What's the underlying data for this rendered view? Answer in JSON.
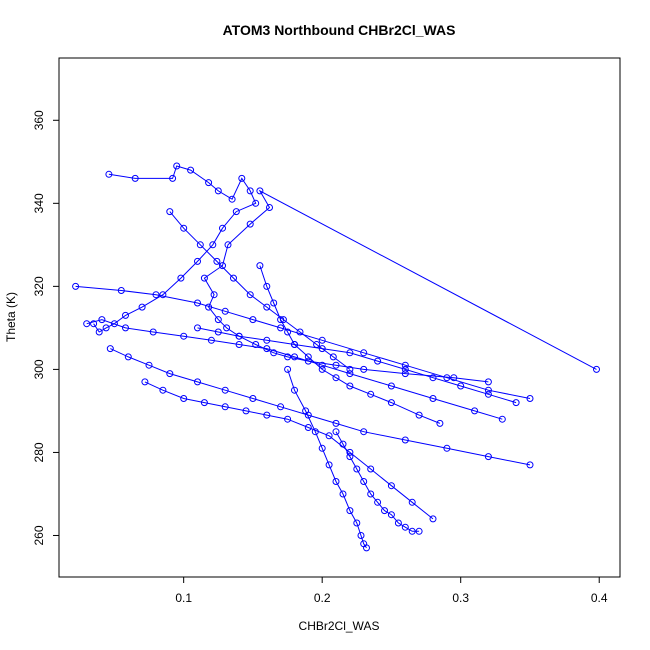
{
  "chart_data": {
    "type": "scatter",
    "title": "ATOM3 Northbound CHBr2Cl_WAS",
    "xlabel": "CHBr2Cl_WAS",
    "ylabel": "Theta (K)",
    "xlim": [
      0.01,
      0.415
    ],
    "ylim": [
      250,
      375
    ],
    "xticks": [
      0.1,
      0.2,
      0.3,
      0.4
    ],
    "yticks": [
      260,
      280,
      300,
      320,
      340,
      360
    ],
    "xtick_labels": [
      "0.1",
      "0.2",
      "0.3",
      "0.4"
    ],
    "ytick_labels": [
      "260",
      "280",
      "300",
      "320",
      "340",
      "360"
    ],
    "grid": false,
    "legend": "none",
    "style": {
      "color": "#0000ff",
      "marker": "open-circle",
      "connect": "lines"
    },
    "series": [
      {
        "x": [
          0.046,
          0.065,
          0.092,
          0.095,
          0.105,
          0.118,
          0.125,
          0.135,
          0.142,
          0.148,
          0.152,
          0.138,
          0.128,
          0.121,
          0.11,
          0.098,
          0.085,
          0.07,
          0.058,
          0.05,
          0.044,
          0.039,
          0.035
        ],
        "y": [
          347,
          346,
          346,
          349,
          348,
          345,
          343,
          341,
          346,
          343,
          340,
          338,
          334,
          330,
          326,
          322,
          318,
          315,
          313,
          311,
          310,
          309,
          311
        ]
      },
      {
        "x": [
          0.398,
          0.155,
          0.162,
          0.148,
          0.132,
          0.128,
          0.115,
          0.122,
          0.118,
          0.125,
          0.131,
          0.14,
          0.152,
          0.165,
          0.175,
          0.19,
          0.21,
          0.23,
          0.26,
          0.295,
          0.32
        ],
        "y": [
          300,
          343,
          339,
          335,
          330,
          325,
          322,
          318,
          315,
          312,
          310,
          308,
          306,
          304,
          303,
          302,
          301,
          300,
          299,
          298,
          297
        ]
      },
      {
        "x": [
          0.022,
          0.055,
          0.08,
          0.11,
          0.13,
          0.15,
          0.17,
          0.2,
          0.23,
          0.26,
          0.29,
          0.32,
          0.35
        ],
        "y": [
          320,
          319,
          318,
          316,
          314,
          312,
          310,
          307,
          304,
          301,
          298,
          295,
          293
        ]
      },
      {
        "x": [
          0.03,
          0.041,
          0.058,
          0.078,
          0.1,
          0.12,
          0.14,
          0.16,
          0.18,
          0.2,
          0.22,
          0.25,
          0.28,
          0.31,
          0.33
        ],
        "y": [
          311,
          312,
          310,
          309,
          308,
          307,
          306,
          305,
          303,
          301,
          299,
          296,
          293,
          290,
          288
        ]
      },
      {
        "x": [
          0.047,
          0.06,
          0.075,
          0.09,
          0.11,
          0.13,
          0.15,
          0.17,
          0.19,
          0.21,
          0.23,
          0.26,
          0.29,
          0.32,
          0.35
        ],
        "y": [
          305,
          303,
          301,
          299,
          297,
          295,
          293,
          291,
          289,
          287,
          285,
          283,
          281,
          279,
          277
        ]
      },
      {
        "x": [
          0.072,
          0.085,
          0.1,
          0.115,
          0.13,
          0.145,
          0.16,
          0.175,
          0.19,
          0.205,
          0.22,
          0.235,
          0.25,
          0.265,
          0.28
        ],
        "y": [
          297,
          295,
          293,
          292,
          291,
          290,
          289,
          288,
          286,
          284,
          280,
          276,
          272,
          268,
          264
        ]
      },
      {
        "x": [
          0.175,
          0.18,
          0.188,
          0.195,
          0.2,
          0.205,
          0.21,
          0.215,
          0.22,
          0.225,
          0.228,
          0.23,
          0.232
        ],
        "y": [
          300,
          295,
          290,
          285,
          281,
          277,
          273,
          270,
          266,
          263,
          260,
          258,
          257
        ]
      },
      {
        "x": [
          0.11,
          0.125,
          0.14,
          0.16,
          0.18,
          0.2,
          0.22,
          0.24,
          0.26,
          0.28,
          0.3,
          0.32,
          0.34
        ],
        "y": [
          310,
          309,
          308,
          307,
          306,
          305,
          304,
          302,
          300,
          298,
          296,
          294,
          292
        ]
      },
      {
        "x": [
          0.155,
          0.16,
          0.165,
          0.17,
          0.175,
          0.18,
          0.19,
          0.2,
          0.21,
          0.22,
          0.235,
          0.25,
          0.27,
          0.285
        ],
        "y": [
          325,
          320,
          316,
          312,
          309,
          306,
          303,
          300,
          298,
          296,
          294,
          292,
          289,
          287
        ]
      },
      {
        "x": [
          0.09,
          0.1,
          0.112,
          0.124,
          0.136,
          0.148,
          0.16,
          0.172,
          0.184,
          0.196,
          0.208,
          0.22
        ],
        "y": [
          338,
          334,
          330,
          326,
          322,
          318,
          315,
          312,
          309,
          306,
          303,
          300
        ]
      },
      {
        "x": [
          0.21,
          0.215,
          0.22,
          0.225,
          0.23,
          0.235,
          0.24,
          0.245,
          0.25,
          0.255,
          0.26,
          0.265,
          0.27
        ],
        "y": [
          285,
          282,
          279,
          276,
          273,
          270,
          268,
          266,
          265,
          263,
          262,
          261,
          261
        ]
      }
    ]
  }
}
